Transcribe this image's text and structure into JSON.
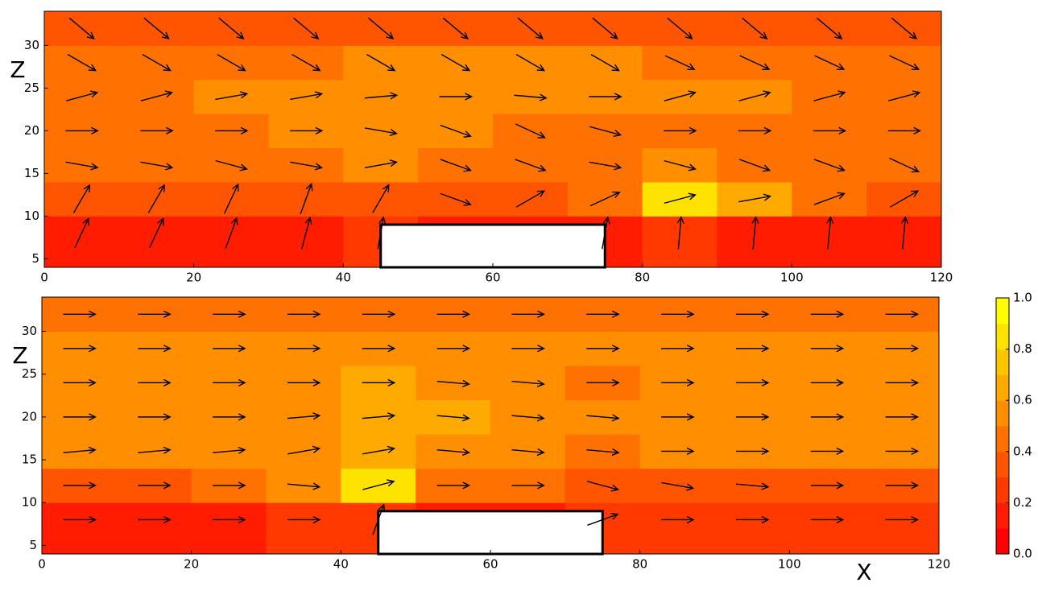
{
  "chart_data": [
    {
      "type": "quiver",
      "ylabel": "Z",
      "x": [
        5,
        15,
        25,
        35,
        45,
        55,
        65,
        75,
        85,
        95,
        105,
        115
      ],
      "z": [
        8,
        12,
        16,
        20,
        24,
        28,
        32
      ],
      "speed": [
        [
          0.15,
          0.15,
          0.15,
          0.15,
          0.2,
          0.1,
          0.1,
          0.15,
          0.2,
          0.15,
          0.15,
          0.15
        ],
        [
          0.3,
          0.3,
          0.3,
          0.3,
          0.35,
          0.3,
          0.3,
          0.45,
          0.85,
          0.6,
          0.4,
          0.3
        ],
        [
          0.4,
          0.4,
          0.4,
          0.45,
          0.5,
          0.45,
          0.4,
          0.45,
          0.5,
          0.45,
          0.45,
          0.4
        ],
        [
          0.45,
          0.45,
          0.45,
          0.5,
          0.55,
          0.5,
          0.45,
          0.45,
          0.45,
          0.45,
          0.45,
          0.45
        ],
        [
          0.45,
          0.45,
          0.5,
          0.5,
          0.55,
          0.55,
          0.5,
          0.5,
          0.5,
          0.5,
          0.45,
          0.45
        ],
        [
          0.45,
          0.45,
          0.45,
          0.45,
          0.5,
          0.5,
          0.5,
          0.5,
          0.45,
          0.45,
          0.45,
          0.45
        ],
        [
          0.35,
          0.35,
          0.35,
          0.35,
          0.35,
          0.35,
          0.35,
          0.35,
          0.35,
          0.35,
          0.35,
          0.35
        ]
      ],
      "angle": [
        [
          65,
          65,
          70,
          75,
          80,
          null,
          null,
          80,
          85,
          85,
          85,
          85
        ],
        [
          60,
          60,
          65,
          70,
          60,
          -20,
          30,
          25,
          15,
          10,
          20,
          30
        ],
        [
          -10,
          -10,
          -15,
          -10,
          10,
          -20,
          -20,
          -10,
          -15,
          -20,
          -20,
          -25
        ],
        [
          0,
          0,
          0,
          0,
          -10,
          -20,
          -25,
          -15,
          0,
          0,
          0,
          0
        ],
        [
          15,
          15,
          10,
          10,
          5,
          0,
          -5,
          0,
          15,
          15,
          15,
          15
        ],
        [
          -30,
          -30,
          -30,
          -30,
          -30,
          -30,
          -30,
          -30,
          -25,
          -25,
          -25,
          -25
        ],
        [
          -40,
          -40,
          -40,
          -40,
          -40,
          -40,
          -40,
          -40,
          -40,
          -40,
          -40,
          -40
        ]
      ],
      "obstacle": {
        "x": [
          45,
          75
        ],
        "top": 9
      },
      "xlim": [
        0,
        120
      ],
      "xticks": [
        0,
        20,
        40,
        60,
        80,
        100,
        120
      ],
      "ylim": [
        4,
        34
      ],
      "yticks": [
        5,
        10,
        15,
        20,
        25,
        30
      ]
    },
    {
      "type": "quiver",
      "ylabel": "Z",
      "xlabel": "X",
      "x": [
        5,
        15,
        25,
        35,
        45,
        55,
        65,
        75,
        85,
        95,
        105,
        115
      ],
      "z": [
        8,
        12,
        16,
        20,
        24,
        28,
        32
      ],
      "speed": [
        [
          0.15,
          0.15,
          0.15,
          0.2,
          0.25,
          0.1,
          0.1,
          0.2,
          0.25,
          0.25,
          0.25,
          0.2
        ],
        [
          0.35,
          0.35,
          0.4,
          0.5,
          0.85,
          0.45,
          0.4,
          0.35,
          0.35,
          0.35,
          0.35,
          0.35
        ],
        [
          0.5,
          0.5,
          0.5,
          0.55,
          0.6,
          0.55,
          0.5,
          0.45,
          0.5,
          0.5,
          0.5,
          0.5
        ],
        [
          0.5,
          0.55,
          0.55,
          0.55,
          0.6,
          0.6,
          0.55,
          0.5,
          0.5,
          0.5,
          0.5,
          0.5
        ],
        [
          0.55,
          0.55,
          0.55,
          0.55,
          0.6,
          0.55,
          0.5,
          0.45,
          0.5,
          0.5,
          0.5,
          0.5
        ],
        [
          0.5,
          0.5,
          0.5,
          0.55,
          0.55,
          0.5,
          0.5,
          0.5,
          0.5,
          0.5,
          0.5,
          0.5
        ],
        [
          0.4,
          0.4,
          0.4,
          0.4,
          0.4,
          0.4,
          0.4,
          0.4,
          0.4,
          0.4,
          0.4,
          0.4
        ]
      ],
      "angle": [
        [
          0,
          0,
          0,
          0,
          70,
          null,
          null,
          20,
          0,
          0,
          0,
          0
        ],
        [
          0,
          0,
          0,
          -5,
          15,
          0,
          0,
          -15,
          -10,
          -5,
          0,
          0
        ],
        [
          5,
          5,
          5,
          10,
          10,
          -5,
          -5,
          -5,
          0,
          0,
          0,
          0
        ],
        [
          0,
          0,
          0,
          5,
          5,
          -5,
          -5,
          -5,
          0,
          0,
          0,
          0
        ],
        [
          0,
          0,
          0,
          0,
          0,
          -5,
          -5,
          0,
          0,
          0,
          0,
          0
        ],
        [
          0,
          0,
          0,
          0,
          0,
          0,
          0,
          0,
          0,
          0,
          0,
          0
        ],
        [
          0,
          0,
          0,
          0,
          0,
          0,
          0,
          0,
          0,
          0,
          0,
          0
        ]
      ],
      "obstacle": {
        "x": [
          45,
          75
        ],
        "top": 9
      },
      "xlim": [
        0,
        120
      ],
      "xticks": [
        0,
        20,
        40,
        60,
        80,
        100,
        120
      ],
      "ylim": [
        4,
        34
      ],
      "yticks": [
        5,
        10,
        15,
        20,
        25,
        30
      ],
      "colorbar": {
        "lim": [
          0,
          1
        ],
        "ticks": [
          {
            "value": 0,
            "label": "0.0"
          },
          {
            "value": 0.2,
            "label": "0.2"
          },
          {
            "value": 0.4,
            "label": "0.4"
          },
          {
            "value": 0.6,
            "label": "0.6"
          },
          {
            "value": 0.8,
            "label": "0.8"
          },
          {
            "value": 1,
            "label": "1.0"
          }
        ],
        "colors": [
          "#ff0000",
          "#ff1c00",
          "#ff3900",
          "#ff5500",
          "#ff7100",
          "#ff8e00",
          "#ffaa00",
          "#ffc600",
          "#ffe300",
          "#ffff00"
        ]
      }
    }
  ]
}
